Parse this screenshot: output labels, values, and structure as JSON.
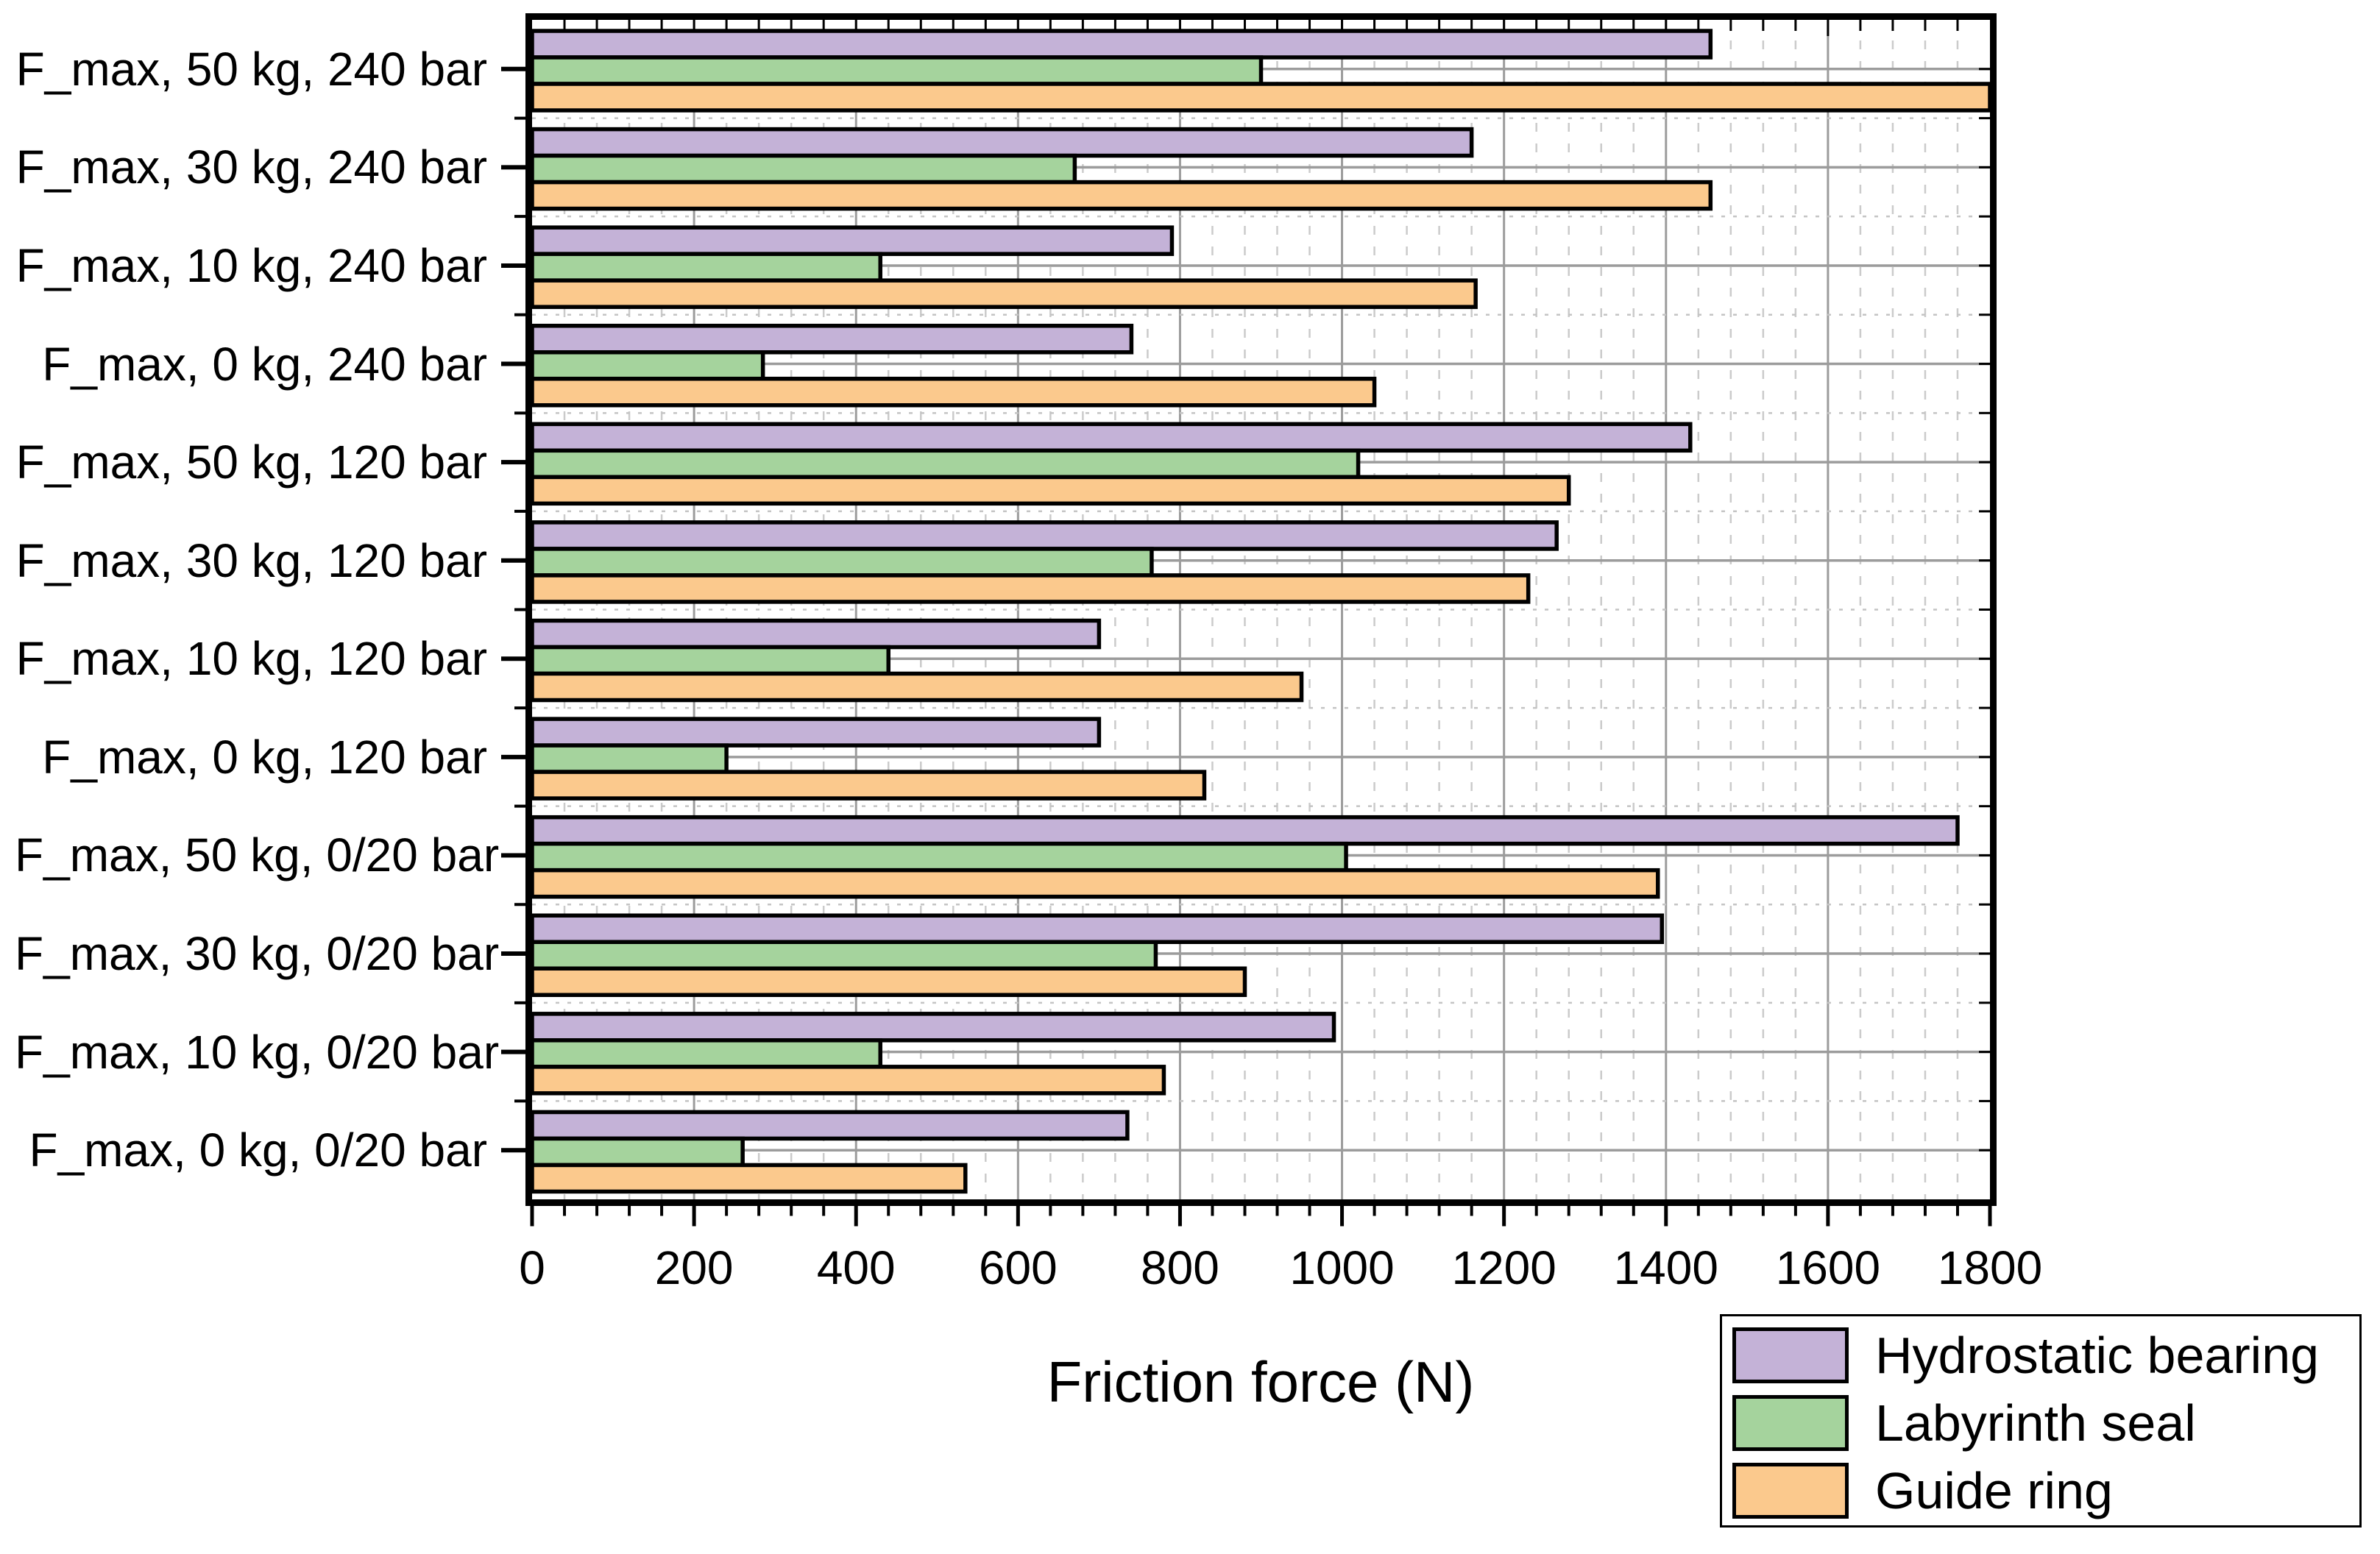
{
  "chart_data": {
    "type": "bar",
    "orientation": "horizontal",
    "xlabel": "Friction force (N)",
    "xlim": [
      0,
      1800
    ],
    "x_major_step": 200,
    "x_minor_step": 40,
    "grid": true,
    "legend_position": "bottom-right",
    "categories": [
      "F_max, 50 kg, 240 bar",
      "F_max, 30 kg, 240 bar",
      "F_max, 10 kg, 240 bar",
      "F_max, 0 kg, 240 bar",
      "F_max, 50 kg, 120 bar",
      "F_max, 30 kg, 120 bar",
      "F_max, 10 kg, 120 bar",
      "F_max, 0 kg, 120 bar",
      "F_max, 50 kg, 0/20 bar",
      "F_max, 30 kg, 0/20 bar",
      "F_max, 10 kg, 0/20 bar",
      "F_max, 0 kg, 0/20 bar"
    ],
    "series": [
      {
        "name": "Hydrostatic bearing",
        "color": "#C4B2D7",
        "values": [
          1455,
          1160,
          790,
          740,
          1430,
          1265,
          700,
          700,
          1760,
          1395,
          990,
          735
        ]
      },
      {
        "name": "Labyrinth seal",
        "color": "#A5D39D",
        "values": [
          900,
          670,
          430,
          285,
          1020,
          765,
          440,
          240,
          1005,
          770,
          430,
          260
        ]
      },
      {
        "name": "Guide ring",
        "color": "#FBC98D",
        "values": [
          1800,
          1455,
          1165,
          1040,
          1280,
          1230,
          950,
          830,
          1390,
          880,
          780,
          535
        ]
      }
    ],
    "colors": {
      "bar_border": "#000000",
      "frame": "#000000",
      "grid_major": "#9C9C9C",
      "grid_minor": "#CBCBCB",
      "grid_boundary": "#C4C4C4"
    }
  }
}
